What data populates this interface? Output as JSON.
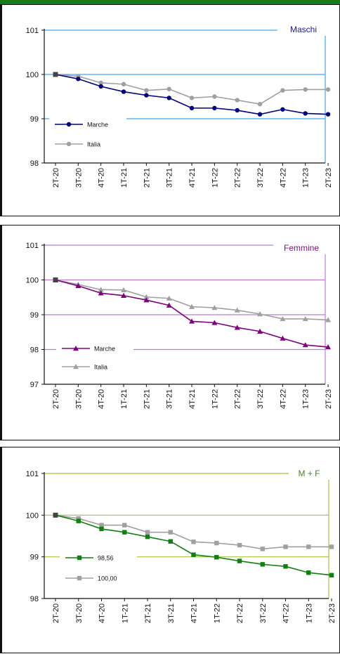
{
  "chart_data": [
    {
      "type": "line",
      "title": "Maschi",
      "accent": "#3fa7f0",
      "title_color": "#1a1a9a",
      "ylim": [
        98,
        101
      ],
      "yticks": [
        98,
        99,
        100,
        101
      ],
      "grid": true,
      "legend_position": "bottom-left",
      "categories": [
        "2T-20",
        "3T-20",
        "4T-20",
        "1T-21",
        "2T-21",
        "3T-21",
        "4T-21",
        "1T-22",
        "2T-22",
        "3T-22",
        "4T-22",
        "1T-23",
        "2T-23"
      ],
      "series": [
        {
          "name": "Marche",
          "color": "#000080",
          "marker": "circle",
          "values": [
            100.0,
            99.9,
            99.73,
            99.61,
            99.53,
            99.47,
            99.24,
            99.24,
            99.19,
            99.1,
            99.21,
            99.12,
            99.1
          ]
        },
        {
          "name": "Italia",
          "color": "#a0a0a0",
          "marker": "circle",
          "values": [
            100.0,
            99.96,
            99.81,
            99.78,
            99.64,
            99.67,
            99.47,
            99.5,
            99.42,
            99.33,
            99.64,
            99.66,
            99.66
          ]
        }
      ]
    },
    {
      "type": "line",
      "title": "Femmine",
      "accent": "#bb7fd6",
      "title_color": "#8a0a8a",
      "ylim": [
        97,
        101
      ],
      "yticks": [
        97,
        98,
        99,
        100,
        101
      ],
      "grid": true,
      "legend_position": "bottom-left",
      "categories": [
        "2T-20",
        "3T-20",
        "4T-20",
        "1T-21",
        "2T-21",
        "3T-21",
        "4T-21",
        "1T-22",
        "2T-22",
        "3T-22",
        "4T-22",
        "1T-23",
        "2T-23"
      ],
      "series": [
        {
          "name": "Marche",
          "color": "#800080",
          "marker": "triangle",
          "values": [
            100.0,
            99.83,
            99.62,
            99.55,
            99.42,
            99.27,
            98.81,
            98.77,
            98.63,
            98.52,
            98.32,
            98.13,
            98.07
          ]
        },
        {
          "name": "Italia",
          "color": "#a0a0a0",
          "marker": "triangle",
          "values": [
            100.0,
            99.87,
            99.72,
            99.71,
            99.51,
            99.47,
            99.23,
            99.2,
            99.13,
            99.02,
            98.88,
            98.88,
            98.85
          ]
        }
      ]
    },
    {
      "type": "line",
      "title": "M + F",
      "accent": "#a8c23a",
      "title_color": "#3a8a1a",
      "ylim": [
        98,
        101
      ],
      "yticks": [
        98,
        99,
        100,
        101
      ],
      "grid": true,
      "legend_position": "bottom-left",
      "categories": [
        "2T-20",
        "3T-20",
        "4T-20",
        "1T-21",
        "2T-21",
        "3T-21",
        "4T-21",
        "1T-22",
        "2T-22",
        "3T-22",
        "4T-22",
        "1T-23",
        "2T-23"
      ],
      "series": [
        {
          "name": "98,56",
          "color": "#108010",
          "marker": "square",
          "values": [
            100.0,
            99.86,
            99.67,
            99.59,
            99.48,
            99.37,
            99.05,
            98.99,
            98.9,
            98.82,
            98.77,
            98.62,
            98.56
          ]
        },
        {
          "name": "100,00",
          "color": "#a0a0a0",
          "marker": "square",
          "values": [
            100.0,
            99.92,
            99.76,
            99.76,
            99.59,
            99.59,
            99.36,
            99.33,
            99.28,
            99.19,
            99.24,
            99.24,
            99.24
          ]
        }
      ]
    }
  ]
}
